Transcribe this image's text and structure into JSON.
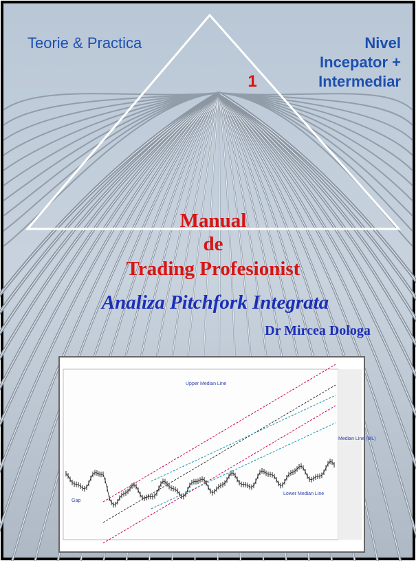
{
  "header": {
    "left": "Teorie & Practica",
    "right": [
      "Nivel",
      "Incepator +",
      "Intermediar"
    ],
    "volume": "1"
  },
  "title": [
    "Manual",
    "de",
    "Trading Profesionist"
  ],
  "subtitle": "Analiza Pitchfork Integrata",
  "author": "Dr Mircea Dologa",
  "inset_labels": [
    "Upper Median Line",
    "Lower Median Line",
    "Median Line (ML)",
    "Gap"
  ]
}
